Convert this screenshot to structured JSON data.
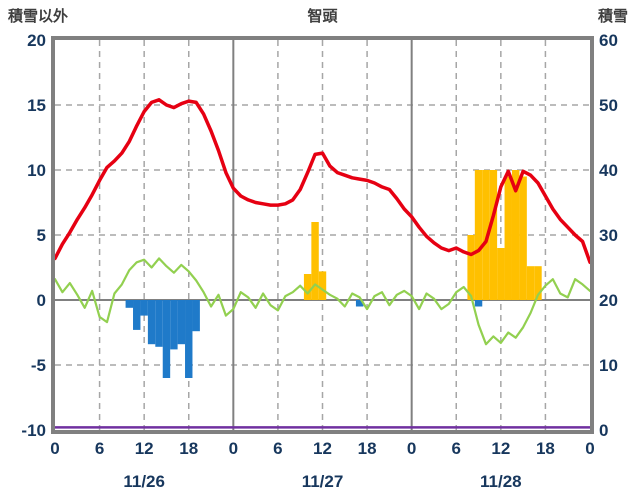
{
  "header": {
    "left_axis_title": "積雪以外",
    "station_title": "智頭",
    "right_axis_title": "積雪"
  },
  "chart_data": {
    "type": "line",
    "title": "智頭",
    "x_hours_total": 72,
    "x_tick_interval_hours": 6,
    "x_tick_labels": [
      "0",
      "6",
      "12",
      "18",
      "0",
      "6",
      "12",
      "18",
      "0",
      "6",
      "12",
      "18",
      "0"
    ],
    "day_labels": [
      "11/26",
      "11/27",
      "11/28"
    ],
    "day_boundary_hours": [
      24,
      48
    ],
    "left_axis": {
      "title": "積雪以外",
      "min": -10,
      "max": 20,
      "ticks": [
        20,
        15,
        10,
        5,
        0,
        -5,
        -10
      ]
    },
    "right_axis": {
      "title": "積雪",
      "min": 0,
      "max": 60,
      "ticks": [
        60,
        50,
        40,
        30,
        20,
        10,
        0
      ]
    },
    "grid": "on",
    "legend": "none",
    "series": [
      {
        "name": "red-line",
        "kind": "line",
        "color": "#e60012",
        "width": 3.5,
        "values": [
          3.2,
          4.3,
          5.2,
          6.2,
          7.1,
          8.1,
          9.2,
          10.2,
          10.7,
          11.3,
          12.2,
          13.4,
          14.5,
          15.2,
          15.4,
          15.0,
          14.8,
          15.1,
          15.3,
          15.2,
          14.3,
          13.0,
          11.5,
          9.8,
          8.6,
          8.0,
          7.7,
          7.5,
          7.4,
          7.3,
          7.3,
          7.4,
          7.7,
          8.5,
          9.8,
          11.2,
          11.3,
          10.3,
          9.8,
          9.6,
          9.4,
          9.3,
          9.2,
          9.0,
          8.7,
          8.5,
          7.8,
          7.0,
          6.4,
          5.6,
          4.9,
          4.4,
          4.0,
          3.8,
          4.0,
          3.7,
          3.5,
          3.8,
          4.5,
          6.5,
          8.7,
          9.9,
          8.4,
          9.9,
          9.6,
          9.0,
          8.0,
          7.0,
          6.2,
          5.6,
          5.0,
          4.5,
          2.9
        ]
      },
      {
        "name": "green-line",
        "kind": "line",
        "color": "#92d050",
        "width": 2.2,
        "values": [
          1.6,
          0.6,
          1.3,
          0.4,
          -0.6,
          0.7,
          -1.3,
          -1.7,
          0.5,
          1.2,
          2.3,
          2.9,
          3.1,
          2.5,
          3.2,
          2.6,
          2.1,
          2.7,
          2.2,
          1.5,
          0.6,
          -0.5,
          0.4,
          -1.2,
          -0.7,
          0.6,
          0.2,
          -0.6,
          0.5,
          -0.4,
          -0.8,
          0.3,
          0.6,
          1.1,
          0.5,
          1.2,
          0.8,
          0.4,
          0.1,
          -0.5,
          0.5,
          0.2,
          -0.7,
          0.3,
          0.6,
          -0.4,
          0.4,
          0.7,
          0.3,
          -0.7,
          0.5,
          0.1,
          -0.7,
          -0.3,
          0.6,
          1.0,
          0.3,
          -1.9,
          -3.4,
          -2.8,
          -3.3,
          -2.5,
          -2.9,
          -2.1,
          -1.0,
          0.4,
          1.1,
          1.6,
          0.5,
          0.2,
          1.6,
          1.2,
          0.7
        ]
      },
      {
        "name": "blue-bars",
        "kind": "bar",
        "color": "#1f7ac9",
        "points": [
          [
            10,
            -0.6
          ],
          [
            11,
            -2.3
          ],
          [
            12,
            -1.2
          ],
          [
            13,
            -3.4
          ],
          [
            14,
            -3.6
          ],
          [
            15,
            -6.0
          ],
          [
            16,
            -3.8
          ],
          [
            17,
            -3.4
          ],
          [
            18,
            -6.0
          ],
          [
            19,
            -2.4
          ],
          [
            41,
            -0.5
          ],
          [
            57,
            -0.5
          ]
        ]
      },
      {
        "name": "yellow-bars",
        "kind": "bar",
        "color": "#ffc000",
        "points": [
          [
            34,
            2.0
          ],
          [
            35,
            6.0
          ],
          [
            36,
            2.2
          ],
          [
            56,
            5.0
          ],
          [
            57,
            10.0
          ],
          [
            58,
            10.0
          ],
          [
            59,
            10.0
          ],
          [
            60,
            4.0
          ],
          [
            61,
            9.5
          ],
          [
            62,
            10.0
          ],
          [
            63,
            9.5
          ],
          [
            64,
            2.6
          ],
          [
            65,
            2.6
          ]
        ]
      },
      {
        "name": "purple-baseline",
        "kind": "flat-line",
        "color": "#7030a0",
        "width": 2.5,
        "value": -9.8
      }
    ],
    "colors": {
      "frame": "#808080",
      "grid_dashed": "#a6a6a6",
      "grid_solid": "#808080",
      "tick_text": "#17375d",
      "title_text": "#3f3f3f",
      "background": "#ffffff"
    }
  }
}
